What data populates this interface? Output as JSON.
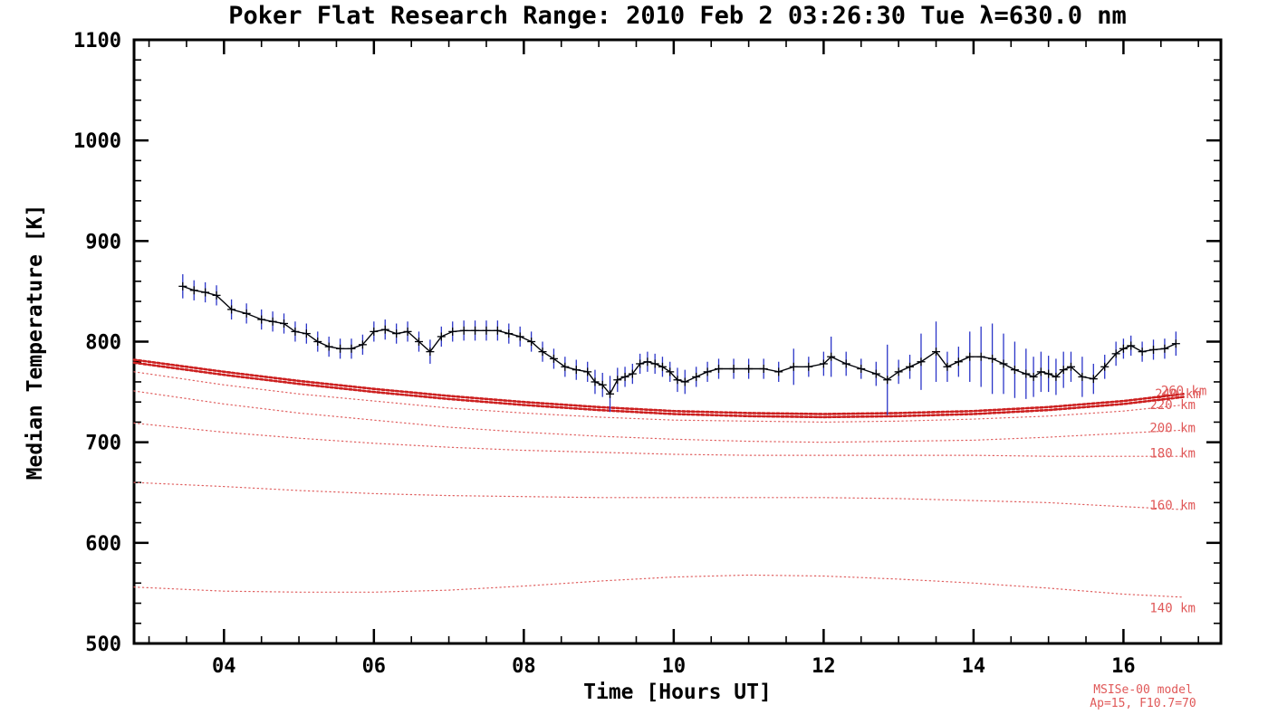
{
  "chart": {
    "title": "Poker Flat Research Range: 2010 Feb  2 03:26:30 Tue λ=630.0 nm",
    "xlabel": "Time [Hours UT]",
    "ylabel": "Median Temperature [K]",
    "note1": "MSISe-00 model",
    "note2": "Ap=15, F10.7=70"
  },
  "chart_data": {
    "type": "line",
    "title": "Poker Flat Research Range: 2010 Feb  2 03:26:30 Tue λ=630.0 nm",
    "xlabel": "Time [Hours UT]",
    "ylabel": "Median Temperature [K]",
    "xlim": [
      2.8,
      17.3
    ],
    "ylim": [
      500,
      1100
    ],
    "x_ticks": [
      4,
      6,
      8,
      10,
      12,
      14,
      16
    ],
    "x_tick_labels": [
      "04",
      "06",
      "08",
      "10",
      "12",
      "14",
      "16"
    ],
    "x_minor": 0.5,
    "y_ticks": [
      500,
      600,
      700,
      800,
      900,
      1000,
      1100
    ],
    "y_minor": 20,
    "grid": false,
    "legend_position": "none",
    "colors": {
      "data": "#000208",
      "error": "#2b35c8",
      "model": "#e06060",
      "model_bold": "#cc1e1e"
    },
    "series": [
      {
        "name": "median-temperature",
        "style": "line+errorbar",
        "t": [
          3.45,
          3.6,
          3.75,
          3.9,
          4.1,
          4.3,
          4.5,
          4.65,
          4.8,
          4.95,
          5.1,
          5.25,
          5.4,
          5.55,
          5.7,
          5.85,
          6.0,
          6.15,
          6.3,
          6.45,
          6.6,
          6.75,
          6.9,
          7.05,
          7.2,
          7.35,
          7.5,
          7.65,
          7.8,
          7.95,
          8.1,
          8.25,
          8.4,
          8.55,
          8.7,
          8.85,
          8.95,
          9.05,
          9.15,
          9.25,
          9.35,
          9.45,
          9.55,
          9.65,
          9.75,
          9.85,
          9.95,
          10.05,
          10.15,
          10.3,
          10.45,
          10.6,
          10.8,
          11.0,
          11.2,
          11.4,
          11.6,
          11.8,
          12.0,
          12.1,
          12.3,
          12.5,
          12.7,
          12.85,
          13.0,
          13.15,
          13.3,
          13.5,
          13.65,
          13.8,
          13.95,
          14.1,
          14.25,
          14.4,
          14.55,
          14.7,
          14.8,
          14.9,
          15.0,
          15.1,
          15.2,
          15.3,
          15.45,
          15.6,
          15.75,
          15.9,
          16.0,
          16.1,
          16.25,
          16.4,
          16.55,
          16.7
        ],
        "v": [
          855,
          851,
          849,
          846,
          832,
          828,
          822,
          820,
          818,
          810,
          808,
          800,
          795,
          793,
          793,
          797,
          810,
          812,
          808,
          810,
          800,
          790,
          805,
          810,
          811,
          811,
          811,
          811,
          808,
          805,
          800,
          790,
          783,
          775,
          772,
          770,
          760,
          757,
          748,
          762,
          765,
          768,
          778,
          780,
          778,
          775,
          770,
          762,
          760,
          765,
          770,
          773,
          773,
          773,
          773,
          770,
          775,
          775,
          778,
          785,
          778,
          773,
          768,
          762,
          770,
          775,
          780,
          790,
          775,
          780,
          785,
          785,
          783,
          778,
          772,
          768,
          765,
          770,
          768,
          765,
          772,
          775,
          765,
          763,
          775,
          788,
          793,
          796,
          790,
          792,
          793,
          798
        ],
        "e": [
          12,
          10,
          10,
          10,
          10,
          10,
          10,
          10,
          10,
          10,
          10,
          10,
          10,
          10,
          10,
          10,
          10,
          10,
          10,
          10,
          10,
          12,
          10,
          10,
          10,
          10,
          10,
          10,
          10,
          10,
          10,
          10,
          10,
          10,
          10,
          10,
          12,
          12,
          18,
          12,
          10,
          10,
          10,
          10,
          10,
          10,
          10,
          12,
          12,
          10,
          10,
          10,
          10,
          10,
          10,
          10,
          18,
          10,
          12,
          20,
          12,
          10,
          12,
          35,
          12,
          12,
          28,
          30,
          15,
          15,
          25,
          30,
          35,
          30,
          28,
          25,
          20,
          20,
          18,
          18,
          18,
          15,
          20,
          15,
          12,
          12,
          10,
          10,
          10,
          10,
          10,
          12
        ]
      }
    ],
    "model_h": [
      2.8,
      4,
      5,
      6,
      7,
      8,
      9,
      10,
      11,
      12,
      13,
      14,
      15,
      16,
      16.8
    ],
    "model_curves": [
      {
        "label": "140 km",
        "bold": false,
        "label_x": 16.35,
        "label_y": 531,
        "v": [
          556,
          552,
          551,
          551,
          553,
          557,
          562,
          566,
          568,
          567,
          564,
          560,
          555,
          549,
          546
        ]
      },
      {
        "label": "160 km",
        "bold": false,
        "label_x": 16.35,
        "label_y": 633,
        "v": [
          660,
          656,
          652,
          649,
          647,
          646,
          645,
          645,
          645,
          645,
          644,
          642,
          640,
          636,
          633
        ]
      },
      {
        "label": "180 km",
        "bold": false,
        "label_x": 16.35,
        "label_y": 685,
        "v": [
          719,
          710,
          704,
          699,
          695,
          692,
          690,
          688,
          687,
          687,
          687,
          687,
          686,
          686,
          686
        ]
      },
      {
        "label": "200 km",
        "bold": false,
        "label_x": 16.35,
        "label_y": 710,
        "v": [
          751,
          738,
          729,
          722,
          715,
          710,
          706,
          703,
          701,
          700,
          701,
          702,
          705,
          709,
          712
        ]
      },
      {
        "label": "220 km",
        "bold": false,
        "label_x": 16.35,
        "label_y": 733,
        "v": [
          770,
          757,
          748,
          741,
          734,
          729,
          725,
          722,
          721,
          720,
          721,
          723,
          726,
          731,
          737
        ]
      },
      {
        "label": "240 km",
        "bold": true,
        "label_x": 16.42,
        "label_y": 744,
        "v": [
          779,
          767,
          758,
          750,
          743,
          737,
          732,
          728,
          726,
          725,
          726,
          728,
          732,
          738,
          745
        ]
      },
      {
        "label": "260 km",
        "bold": true,
        "label_x": 16.5,
        "label_y": 747,
        "v": [
          782,
          770,
          761,
          753,
          746,
          740,
          735,
          731,
          729,
          728,
          729,
          731,
          735,
          741,
          748
        ]
      }
    ]
  }
}
